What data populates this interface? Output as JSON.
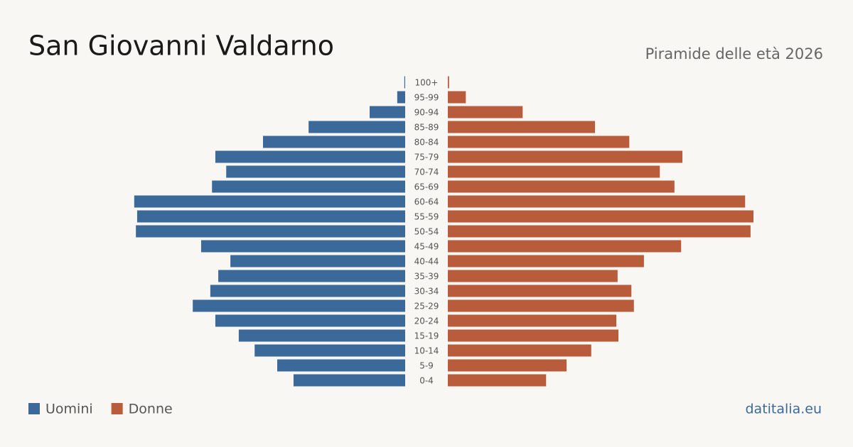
{
  "chart_data": {
    "type": "pyramid",
    "title": "San Giovanni Valdarno",
    "subtitle": "Piramide delle età 2026",
    "source": "datitalia.eu",
    "categories": [
      "100+",
      "95-99",
      "90-94",
      "85-89",
      "80-84",
      "75-79",
      "70-74",
      "65-69",
      "60-64",
      "55-59",
      "50-54",
      "45-49",
      "40-44",
      "35-39",
      "30-34",
      "25-29",
      "20-24",
      "15-19",
      "10-14",
      "5-9",
      "0-4"
    ],
    "series": [
      {
        "name": "Uomini",
        "color": "#3b6a9a",
        "values": [
          2,
          19,
          85,
          231,
          340,
          454,
          428,
          462,
          648,
          641,
          644,
          488,
          418,
          447,
          466,
          508,
          454,
          398,
          360,
          306,
          267
        ]
      },
      {
        "name": "Donne",
        "color": "#b85c3c",
        "values": [
          3,
          43,
          179,
          352,
          434,
          561,
          507,
          542,
          711,
          731,
          724,
          558,
          469,
          406,
          439,
          445,
          403,
          408,
          343,
          284,
          235
        ]
      }
    ]
  }
}
